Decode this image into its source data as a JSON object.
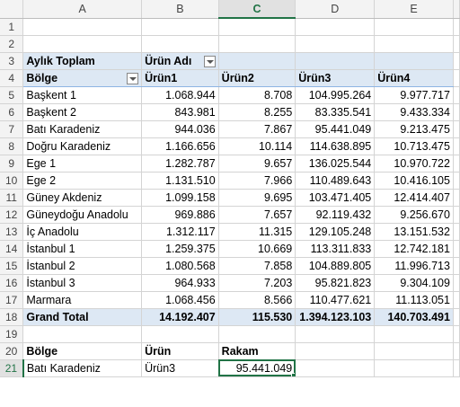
{
  "columns": [
    "A",
    "B",
    "C",
    "D",
    "E"
  ],
  "rows": [
    "1",
    "2",
    "3",
    "4",
    "5",
    "6",
    "7",
    "8",
    "9",
    "10",
    "11",
    "12",
    "13",
    "14",
    "15",
    "16",
    "17",
    "18",
    "19",
    "20",
    "21"
  ],
  "pivot": {
    "title": "Aylık Toplam",
    "col_field": "Ürün Adı",
    "row_field": "Bölge",
    "products": [
      "Ürün1",
      "Ürün2",
      "Ürün3",
      "Ürün4"
    ],
    "data": [
      [
        "Başkent 1",
        "1.068.944",
        "8.708",
        "104.995.264",
        "9.977.717"
      ],
      [
        "Başkent 2",
        "843.981",
        "8.255",
        "83.335.541",
        "9.433.334"
      ],
      [
        "Batı Karadeniz",
        "944.036",
        "7.867",
        "95.441.049",
        "9.213.475"
      ],
      [
        "Doğru Karadeniz",
        "1.166.656",
        "10.114",
        "114.638.895",
        "10.713.475"
      ],
      [
        "Ege 1",
        "1.282.787",
        "9.657",
        "136.025.544",
        "10.970.722"
      ],
      [
        "Ege 2",
        "1.131.510",
        "7.966",
        "110.489.643",
        "10.416.105"
      ],
      [
        "Güney Akdeniz",
        "1.099.158",
        "9.695",
        "103.471.405",
        "12.414.407"
      ],
      [
        "Güneydoğu Anadolu",
        "969.886",
        "7.657",
        "92.119.432",
        "9.256.670"
      ],
      [
        "İç Anadolu",
        "1.312.117",
        "11.315",
        "129.105.248",
        "13.151.532"
      ],
      [
        "İstanbul 1",
        "1.259.375",
        "10.669",
        "113.311.833",
        "12.742.181"
      ],
      [
        "İstanbul 2",
        "1.080.568",
        "7.858",
        "104.889.805",
        "11.996.713"
      ],
      [
        "İstanbul 3",
        "964.933",
        "7.203",
        "95.821.823",
        "9.304.109"
      ],
      [
        "Marmara",
        "1.068.456",
        "8.566",
        "110.477.621",
        "11.113.051"
      ]
    ],
    "grand_total": [
      "Grand Total",
      "14.192.407",
      "115.530",
      "1.394.123.103",
      "140.703.491"
    ]
  },
  "lookup": {
    "headers": [
      "Bölge",
      "Ürün",
      "Rakam"
    ],
    "values": [
      "Batı Karadeniz",
      "Ürün3",
      "95.441.049"
    ]
  }
}
